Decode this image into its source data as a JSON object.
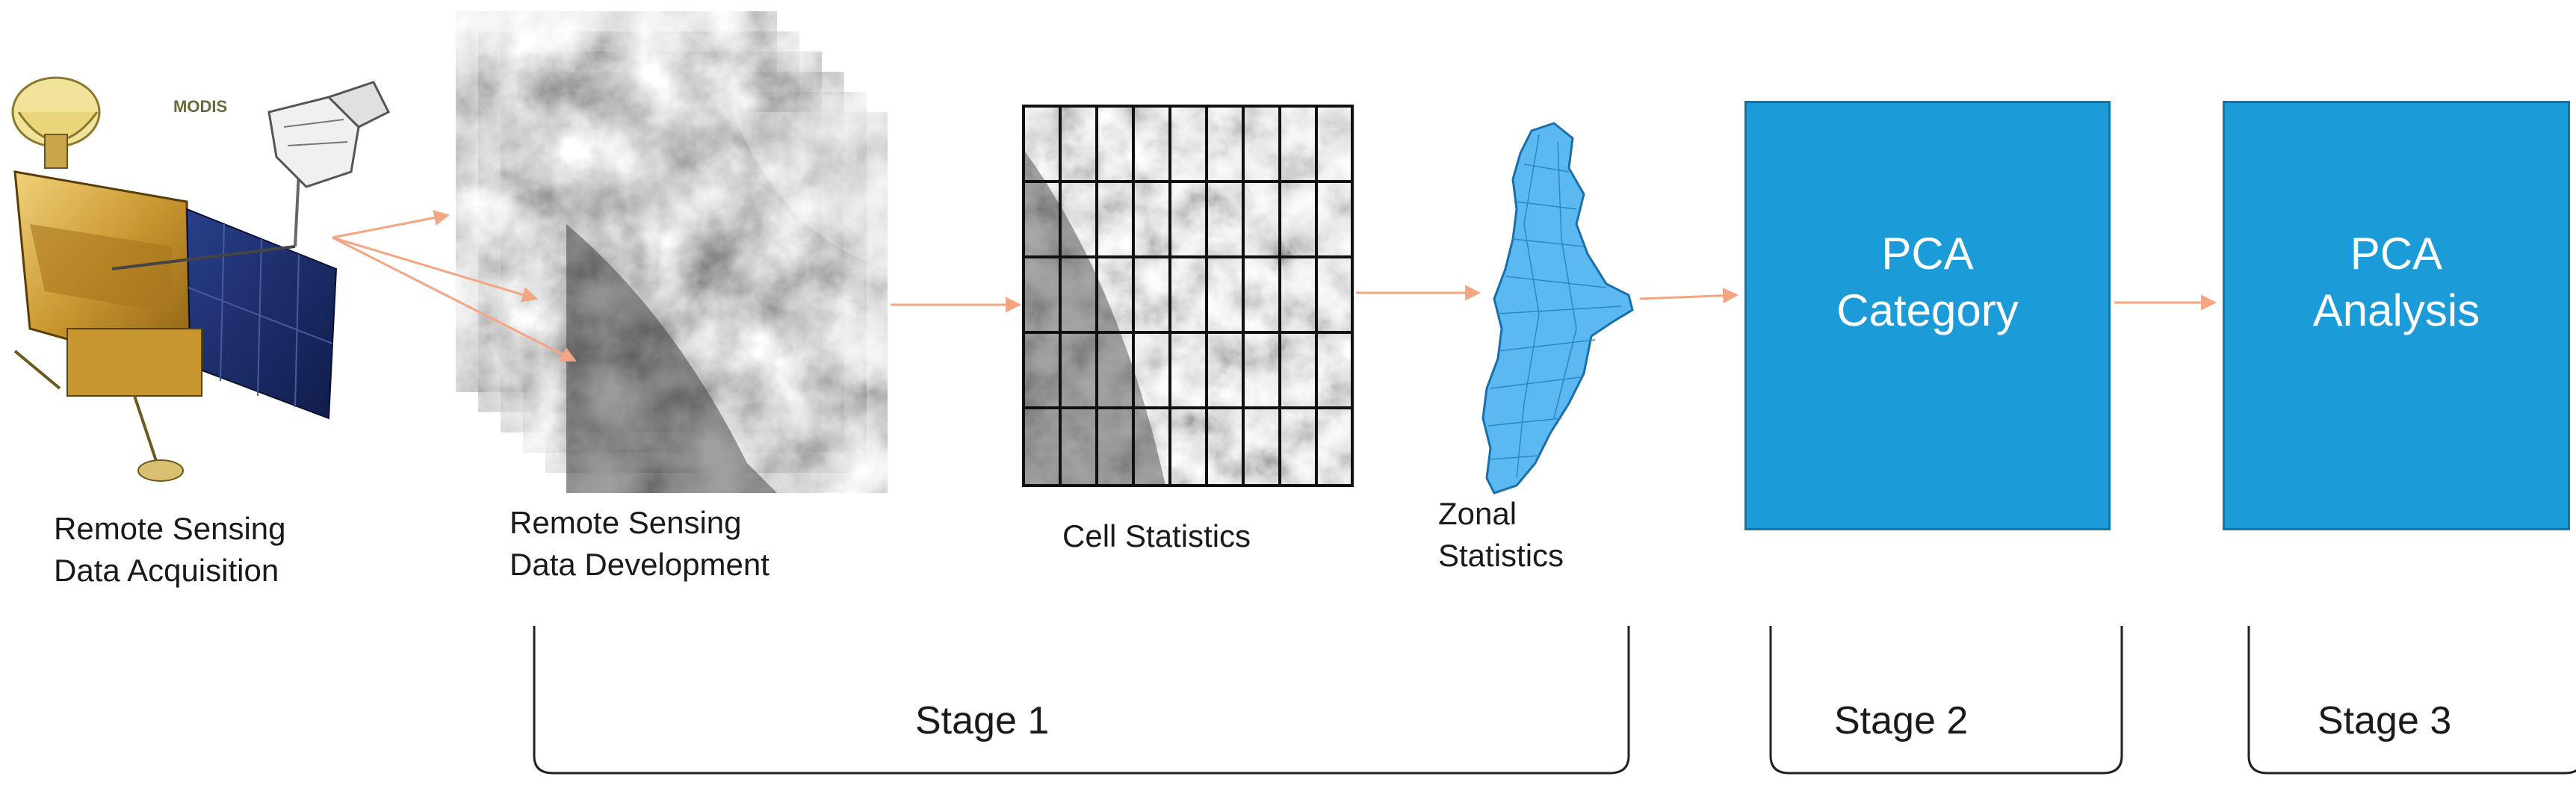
{
  "labels": {
    "acquisition": "Remote Sensing\nData Acquisition",
    "development": "Remote Sensing\nData Development",
    "cell": "Cell Statistics",
    "zonal": "Zonal\nStatistics",
    "modis": "MODIS"
  },
  "boxes": {
    "category": "PCA\nCategory",
    "analysis": "PCA\nAnalysis"
  },
  "stages": [
    "Stage 1",
    "Stage 2",
    "Stage 3"
  ],
  "colors": {
    "box_fill": "#1b9bd8",
    "arrow": "#f4a582",
    "map": "#5bb8f0"
  }
}
